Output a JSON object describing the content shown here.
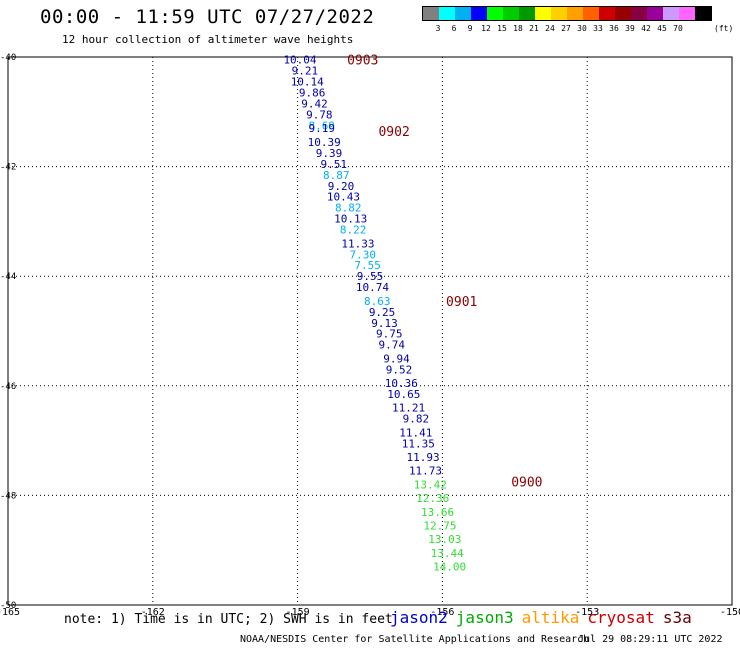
{
  "title": "00:00 - 11:59 UTC 07/27/2022",
  "subtitle": "12 hour collection of altimeter wave heights",
  "scale": {
    "colors": [
      "#808080",
      "#00ffff",
      "#00b0f0",
      "#0000ff",
      "#00ff00",
      "#00cc00",
      "#009900",
      "#ffff00",
      "#ffd000",
      "#ffa000",
      "#ff6000",
      "#cc0000",
      "#990000",
      "#880044",
      "#990099",
      "#cc99ff",
      "#ff66ff",
      "#000000"
    ],
    "labels": [
      "",
      "3",
      "6",
      "9",
      "12",
      "15",
      "18",
      "21",
      "24",
      "27",
      "30",
      "33",
      "36",
      "39",
      "42",
      "45",
      "70"
    ],
    "unit": "(ft)"
  },
  "note": "note: 1) Time is in UTC; 2) SWH is in feet",
  "legend": [
    {
      "name": "jason2",
      "color": "#0000cc"
    },
    {
      "name": "jason3",
      "color": "#00aa00"
    },
    {
      "name": "altika",
      "color": "#ff9900"
    },
    {
      "name": "cryosat",
      "color": "#cc0000"
    },
    {
      "name": "s3a",
      "color": "#660000"
    }
  ],
  "footer_left": "NOAA/NESDIS Center for Satellite Applications and Research",
  "footer_right": "Jul 29 08:29:11 UTC 2022",
  "chart_data": {
    "type": "scatter",
    "xlim": [
      -165,
      -150
    ],
    "ylim": [
      -50,
      -40
    ],
    "x_ticks": [
      -165,
      -162,
      -159,
      -156,
      -153,
      -150
    ],
    "x_tick_labels": [
      "-165",
      "-162",
      "-159",
      "-156",
      "-153",
      "-150"
    ],
    "y_ticks": [
      -40,
      -42,
      -44,
      -46,
      -48,
      -50
    ],
    "y_tick_labels": [
      "-40",
      "-42",
      "-44",
      "-46",
      "-48",
      "-50"
    ],
    "grid": true,
    "colors": {
      "dark_blue": "#0000aa",
      "light_blue": "#00b0f0",
      "green": "#33dd33",
      "time": "#880000"
    },
    "points": [
      {
        "lon": -158.95,
        "lat": -40.05,
        "value": "10.04",
        "color": "#0000aa"
      },
      {
        "lon": -158.85,
        "lat": -40.25,
        "value": "9.21",
        "color": "#0000aa"
      },
      {
        "lon": -158.8,
        "lat": -40.45,
        "value": "10.14",
        "color": "#0000aa"
      },
      {
        "lon": -158.7,
        "lat": -40.65,
        "value": "9.86",
        "color": "#0000aa"
      },
      {
        "lon": -158.65,
        "lat": -40.85,
        "value": "9.42",
        "color": "#0000aa"
      },
      {
        "lon": -158.55,
        "lat": -41.05,
        "value": "9.78",
        "color": "#0000aa"
      },
      {
        "lon": -158.5,
        "lat": -41.25,
        "value": "8.69",
        "color": "#00b0f0"
      },
      {
        "lon": -158.5,
        "lat": -41.3,
        "value": "9.19",
        "color": "#0000aa"
      },
      {
        "lon": -158.45,
        "lat": -41.55,
        "value": "10.39",
        "color": "#0000aa"
      },
      {
        "lon": -158.35,
        "lat": -41.75,
        "value": "9.39",
        "color": "#0000aa"
      },
      {
        "lon": -158.25,
        "lat": -41.95,
        "value": "9.51",
        "color": "#0000aa"
      },
      {
        "lon": -158.2,
        "lat": -42.15,
        "value": "8.87",
        "color": "#00b0f0"
      },
      {
        "lon": -158.1,
        "lat": -42.35,
        "value": "9.20",
        "color": "#0000aa"
      },
      {
        "lon": -158.05,
        "lat": -42.55,
        "value": "10.43",
        "color": "#0000aa"
      },
      {
        "lon": -157.95,
        "lat": -42.75,
        "value": "8.82",
        "color": "#00b0f0"
      },
      {
        "lon": -157.9,
        "lat": -42.95,
        "value": "10.13",
        "color": "#0000aa"
      },
      {
        "lon": -157.85,
        "lat": -43.15,
        "value": "8.22",
        "color": "#00b0f0"
      },
      {
        "lon": -157.75,
        "lat": -43.4,
        "value": "11.33",
        "color": "#0000aa"
      },
      {
        "lon": -157.65,
        "lat": -43.6,
        "value": "7.30",
        "color": "#00b0f0"
      },
      {
        "lon": -157.55,
        "lat": -43.8,
        "value": "7.55",
        "color": "#00b0f0"
      },
      {
        "lon": -157.5,
        "lat": -44.0,
        "value": "9.55",
        "color": "#0000aa"
      },
      {
        "lon": -157.45,
        "lat": -44.2,
        "value": "10.74",
        "color": "#0000aa"
      },
      {
        "lon": -157.35,
        "lat": -44.45,
        "value": "8.63",
        "color": "#00b0f0"
      },
      {
        "lon": -157.25,
        "lat": -44.65,
        "value": "9.25",
        "color": "#0000aa"
      },
      {
        "lon": -157.2,
        "lat": -44.85,
        "value": "9.13",
        "color": "#0000aa"
      },
      {
        "lon": -157.1,
        "lat": -45.05,
        "value": "9.75",
        "color": "#0000aa"
      },
      {
        "lon": -157.05,
        "lat": -45.25,
        "value": "9.74",
        "color": "#0000aa"
      },
      {
        "lon": -156.95,
        "lat": -45.5,
        "value": "9.94",
        "color": "#0000aa"
      },
      {
        "lon": -156.9,
        "lat": -45.7,
        "value": "9.52",
        "color": "#0000aa"
      },
      {
        "lon": -156.85,
        "lat": -45.95,
        "value": "10.36",
        "color": "#0000aa"
      },
      {
        "lon": -156.8,
        "lat": -46.15,
        "value": "10.65",
        "color": "#0000aa"
      },
      {
        "lon": -156.7,
        "lat": -46.4,
        "value": "11.21",
        "color": "#0000aa"
      },
      {
        "lon": -156.55,
        "lat": -46.6,
        "value": "9.82",
        "color": "#0000aa"
      },
      {
        "lon": -156.55,
        "lat": -46.85,
        "value": "11.41",
        "color": "#0000aa"
      },
      {
        "lon": -156.5,
        "lat": -47.05,
        "value": "11.35",
        "color": "#0000aa"
      },
      {
        "lon": -156.4,
        "lat": -47.3,
        "value": "11.93",
        "color": "#0000aa"
      },
      {
        "lon": -156.35,
        "lat": -47.55,
        "value": "11.73",
        "color": "#0000aa"
      },
      {
        "lon": -156.25,
        "lat": -47.8,
        "value": "13.42",
        "color": "#33dd33"
      },
      {
        "lon": -156.2,
        "lat": -48.05,
        "value": "12.36",
        "color": "#33dd33"
      },
      {
        "lon": -156.1,
        "lat": -48.3,
        "value": "13.66",
        "color": "#33dd33"
      },
      {
        "lon": -156.05,
        "lat": -48.55,
        "value": "12.75",
        "color": "#33dd33"
      },
      {
        "lon": -155.95,
        "lat": -48.8,
        "value": "13.03",
        "color": "#33dd33"
      },
      {
        "lon": -155.9,
        "lat": -49.05,
        "value": "13.44",
        "color": "#33dd33"
      },
      {
        "lon": -155.85,
        "lat": -49.3,
        "value": "14.00",
        "color": "#33dd33"
      }
    ],
    "time_labels": [
      {
        "lon": -157.65,
        "lat": -40.05,
        "label": "0903"
      },
      {
        "lon": -157.0,
        "lat": -41.35,
        "label": "0902"
      },
      {
        "lon": -155.6,
        "lat": -44.45,
        "label": "0901"
      },
      {
        "lon": -154.25,
        "lat": -47.75,
        "label": "0900"
      }
    ]
  }
}
